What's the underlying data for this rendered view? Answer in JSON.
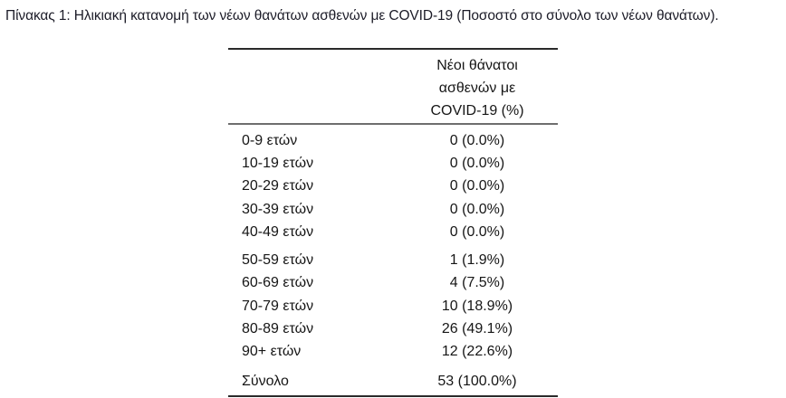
{
  "title": "Πίνακας 1: Ηλικιακή κατανομή των νέων θανάτων ασθενών με COVID-19 (Ποσοστό στο σύνολο των νέων θανάτων).",
  "table": {
    "header_lines": [
      "Νέοι θάνατοι",
      "ασθενών με",
      "COVID-19 (%)"
    ],
    "rows": [
      {
        "label": "0-9 ετών",
        "value": "0 (0.0%)"
      },
      {
        "label": "10-19 ετών",
        "value": "0 (0.0%)"
      },
      {
        "label": "20-29 ετών",
        "value": "0 (0.0%)"
      },
      {
        "label": "30-39 ετών",
        "value": "0 (0.0%)"
      },
      {
        "label": "40-49 ετών",
        "value": "0 (0.0%)"
      },
      {
        "label": "50-59 ετών",
        "value": "1 (1.9%)"
      },
      {
        "label": "60-69 ετών",
        "value": "4 (7.5%)"
      },
      {
        "label": "70-79 ετών",
        "value": "10 (18.9%)"
      },
      {
        "label": "80-89 ετών",
        "value": "26 (49.1%)"
      },
      {
        "label": "90+ ετών",
        "value": "12 (22.6%)"
      },
      {
        "label": "Σύνολο",
        "value": "53 (100.0%)"
      }
    ]
  },
  "colors": {
    "background": "#ffffff",
    "text": "#161616",
    "title_text": "#1c1c28",
    "border_strong": "#2a2a2a",
    "border_header": "#6e6e6e"
  }
}
